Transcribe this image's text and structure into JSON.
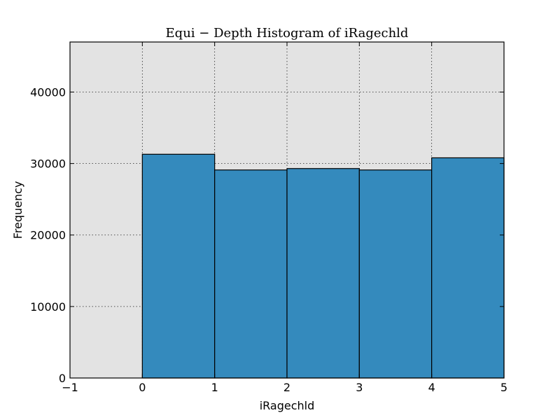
{
  "chart_data": {
    "type": "bar",
    "title": "Equi − Depth Histogram of iRagechld",
    "xlabel": "iRagechld",
    "ylabel": "Frequency",
    "bins": [
      {
        "x0": 0,
        "x1": 1,
        "value": 31300
      },
      {
        "x0": 1,
        "x1": 2,
        "value": 29100
      },
      {
        "x0": 2,
        "x1": 3,
        "value": 29300
      },
      {
        "x0": 3,
        "x1": 4,
        "value": 29100
      },
      {
        "x0": 4,
        "x1": 5,
        "value": 30800
      }
    ],
    "xlim": [
      -1,
      5
    ],
    "ylim": [
      0,
      47000
    ],
    "xticks": [
      -1,
      0,
      1,
      2,
      3,
      4,
      5
    ],
    "xtick_labels": [
      "−1",
      "0",
      "1",
      "2",
      "3",
      "4",
      "5"
    ],
    "yticks": [
      0,
      10000,
      20000,
      30000,
      40000
    ],
    "ytick_labels": [
      "0",
      "10000",
      "20000",
      "30000",
      "40000"
    ],
    "grid": true,
    "colors": {
      "bar": "#348abd",
      "plot_background": "#e3e3e3"
    }
  }
}
